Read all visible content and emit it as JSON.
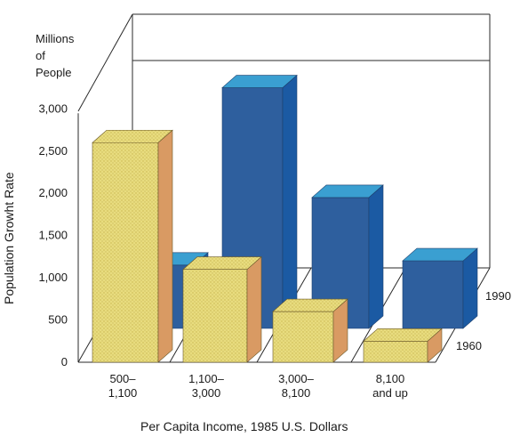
{
  "chart_data": {
    "type": "bar",
    "style": "3d-grouped-depth",
    "units_label": [
      "Millions",
      "of",
      "People"
    ],
    "ylabel": "Population Growht Rate",
    "xlabel": "Per Capita Income,  1985 U.S. Dollars",
    "ylim": [
      0,
      3000
    ],
    "yticks": [
      "0",
      "500",
      "1,000",
      "1,500",
      "2,000",
      "2,500",
      "3,000"
    ],
    "categories": [
      [
        "500–",
        "1,100"
      ],
      [
        "1,100–",
        "3,000"
      ],
      [
        "3,000–",
        "8,100"
      ],
      [
        "8,100",
        "and up"
      ]
    ],
    "series": [
      {
        "name": "1960",
        "values": [
          2600,
          1100,
          600,
          250
        ],
        "color": "#e6d97a",
        "side_color": "#d99a63",
        "pattern": "dotted"
      },
      {
        "name": "1990",
        "values": [
          750,
          2850,
          1550,
          800
        ],
        "color": "#2e5f9e",
        "top_color": "#3a9fd1",
        "side_color": "#1b5aa3"
      }
    ],
    "grid": false
  }
}
